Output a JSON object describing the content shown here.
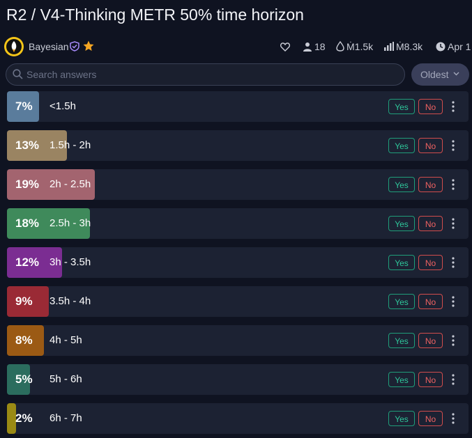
{
  "header": {
    "title": "R2 / V4-Thinking METR 50% time horizon",
    "creator": "Bayesian",
    "stats": {
      "traders": 18,
      "volume": "Ṁ1.5k",
      "liquidity": "Ṁ8.3k",
      "close": "Apr 1"
    }
  },
  "search": {
    "placeholder": "Search answers"
  },
  "sort": "Oldest",
  "buttons": {
    "yes": "Yes",
    "no": "No"
  },
  "answers": [
    {
      "text": "<1.5h",
      "prob": {
        "value": 7,
        "label": "7%"
      },
      "color": "#5a7c9c"
    },
    {
      "text": "1.5h - 2h",
      "prob": {
        "value": 13,
        "label": "13%"
      },
      "color": "#9a8462"
    },
    {
      "text": "2h - 2.5h",
      "prob": {
        "value": 19,
        "label": "19%"
      },
      "color": "#a3646f"
    },
    {
      "text": "2.5h - 3h",
      "prob": {
        "value": 18,
        "label": "18%"
      },
      "color": "#3f8a5b"
    },
    {
      "text": "3h - 3.5h",
      "prob": {
        "value": 12,
        "label": "12%"
      },
      "color": "#7b2d92"
    },
    {
      "text": "3.5h - 4h",
      "prob": {
        "value": 9,
        "label": "9%"
      },
      "color": "#9a2a35"
    },
    {
      "text": "4h - 5h",
      "prob": {
        "value": 8,
        "label": "8%"
      },
      "color": "#9b5a14"
    },
    {
      "text": "5h - 6h",
      "prob": {
        "value": 5,
        "label": "5%"
      },
      "color": "#2b6d5e"
    },
    {
      "text": "6h - 7h",
      "prob": {
        "value": 2,
        "label": "2%"
      },
      "color": "#9a8a14"
    }
  ]
}
